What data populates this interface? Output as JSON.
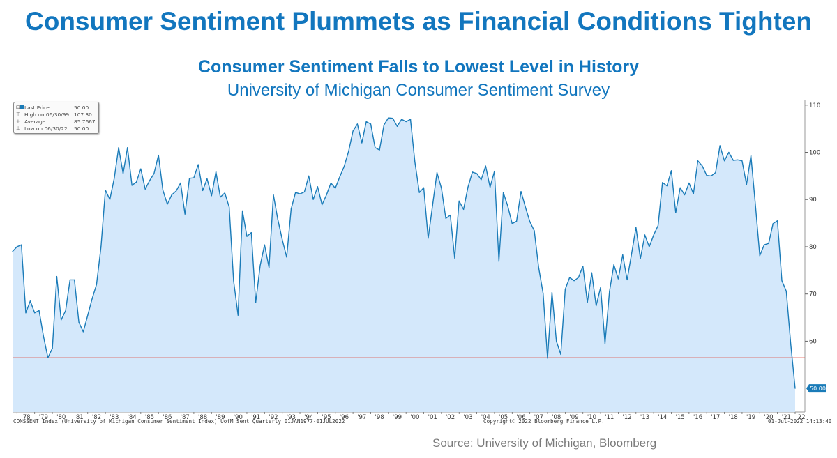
{
  "headline": "Consumer Sentiment Plummets as Financial Conditions Tighten",
  "source": "Source: University of Michigan, Bloomberg",
  "footer": {
    "left": "CONSSENT Index (University of Michigan Consumer Sentiment Index) UofM Sent  Quarterly 01JAN1977-01JUL2022",
    "middle": "Copyright© 2022 Bloomberg Finance L.P.",
    "right": "01-Jul-2022 14:13:40"
  },
  "legend": [
    {
      "label": "Last Price",
      "value": "50.00",
      "icon": "square-swatch-icon"
    },
    {
      "label": "High on 06/30/99",
      "value": "107.30",
      "icon": "high-marker-icon"
    },
    {
      "label": "Average",
      "value": "85.7667",
      "icon": "average-marker-icon"
    },
    {
      "label": "Low on 06/30/22",
      "value": "50.00",
      "icon": "low-marker-icon"
    }
  ],
  "colors": {
    "title": "#1276BE",
    "line": "#1a7bb8",
    "fill": "#d4e8fb",
    "reference_line": "#e0554a"
  },
  "chart_data": {
    "type": "area",
    "title": "Consumer Sentiment Falls to Lowest Level in History",
    "subtitle": "University of Michigan Consumer Sentiment Survey",
    "xlabel": "",
    "ylabel": "",
    "y_axis_side": "right",
    "ylim": [
      45,
      111
    ],
    "y_ticks": [
      60,
      70,
      80,
      90,
      100,
      110
    ],
    "x_ticks": [
      "'78",
      "'79",
      "'80",
      "'81",
      "'82",
      "'83",
      "'84",
      "'85",
      "'86",
      "'87",
      "'88",
      "'89",
      "'90",
      "'91",
      "'92",
      "'93",
      "'94",
      "'95",
      "'96",
      "'97",
      "'98",
      "'99",
      "'00",
      "'01",
      "'02",
      "'03",
      "'04",
      "'05",
      "'06",
      "'07",
      "'08",
      "'09",
      "'10",
      "'11",
      "'12",
      "'13",
      "'14",
      "'15",
      "'16",
      "'17",
      "'18",
      "'19",
      "'20",
      "'21",
      "'22"
    ],
    "reference_line": 56.5,
    "last_value_label": "50.00",
    "series": [
      {
        "frequency": "quarterly",
        "start": "1977Q4",
        "values": [
          79,
          80,
          80.4,
          66,
          68.5,
          66,
          66.5,
          61,
          56.5,
          58.5,
          73.7,
          64.5,
          66.5,
          73,
          73,
          64,
          62,
          65.5,
          69,
          72,
          80,
          92,
          90,
          94.5,
          101,
          95.5,
          101,
          93,
          93.7,
          96.5,
          92.2,
          94,
          95.5,
          99.4,
          92,
          89,
          91,
          91.8,
          93.5,
          86.9,
          94.5,
          94.6,
          97.4,
          91.9,
          94.4,
          90.8,
          95.9,
          90.5,
          91.4,
          88.4,
          72.8,
          65.5,
          87.6,
          82.2,
          83,
          68.2,
          76,
          80.4,
          75.6,
          91,
          85.8,
          81.5,
          77.8,
          88,
          91.5,
          91.2,
          91.6,
          95,
          90,
          92.7,
          88.9,
          91,
          93.5,
          92.4,
          94.8,
          97,
          100.2,
          104.5,
          106,
          102,
          106.5,
          106,
          101,
          100.5,
          105.8,
          107.3,
          107.2,
          105.5,
          107,
          106.5,
          107,
          98,
          91.5,
          92.5,
          81.8,
          88.8,
          95.7,
          92.4,
          86,
          86.7,
          77.6,
          89.7,
          87.9,
          92.6,
          95.8,
          95.5,
          94.2,
          97.1,
          92.6,
          96,
          76.9,
          91.5,
          88.6,
          84.9,
          85.4,
          91.7,
          88.4,
          85.3,
          83.4,
          75.6,
          70.1,
          56.4,
          70.3,
          60,
          57.2,
          71,
          73.5,
          72.8,
          73.5,
          75.9,
          68.2,
          74.5,
          67.5,
          71.4,
          59.5,
          70.5,
          76.2,
          73.2,
          78.3,
          73,
          78.5,
          84.1,
          77.5,
          82.5,
          80,
          82.5,
          84.5,
          93.6,
          92.9,
          96.1,
          87.2,
          92.5,
          91,
          93.5,
          91.2,
          98.2,
          97.1,
          95.1,
          95,
          95.7,
          101.4,
          98.2,
          100,
          98.3,
          98.4,
          98.2,
          93.2,
          99.3,
          89.1,
          78.1,
          80.4,
          80.7,
          84.9,
          85.5,
          72.8,
          70.6,
          59.4,
          50
        ]
      }
    ]
  }
}
